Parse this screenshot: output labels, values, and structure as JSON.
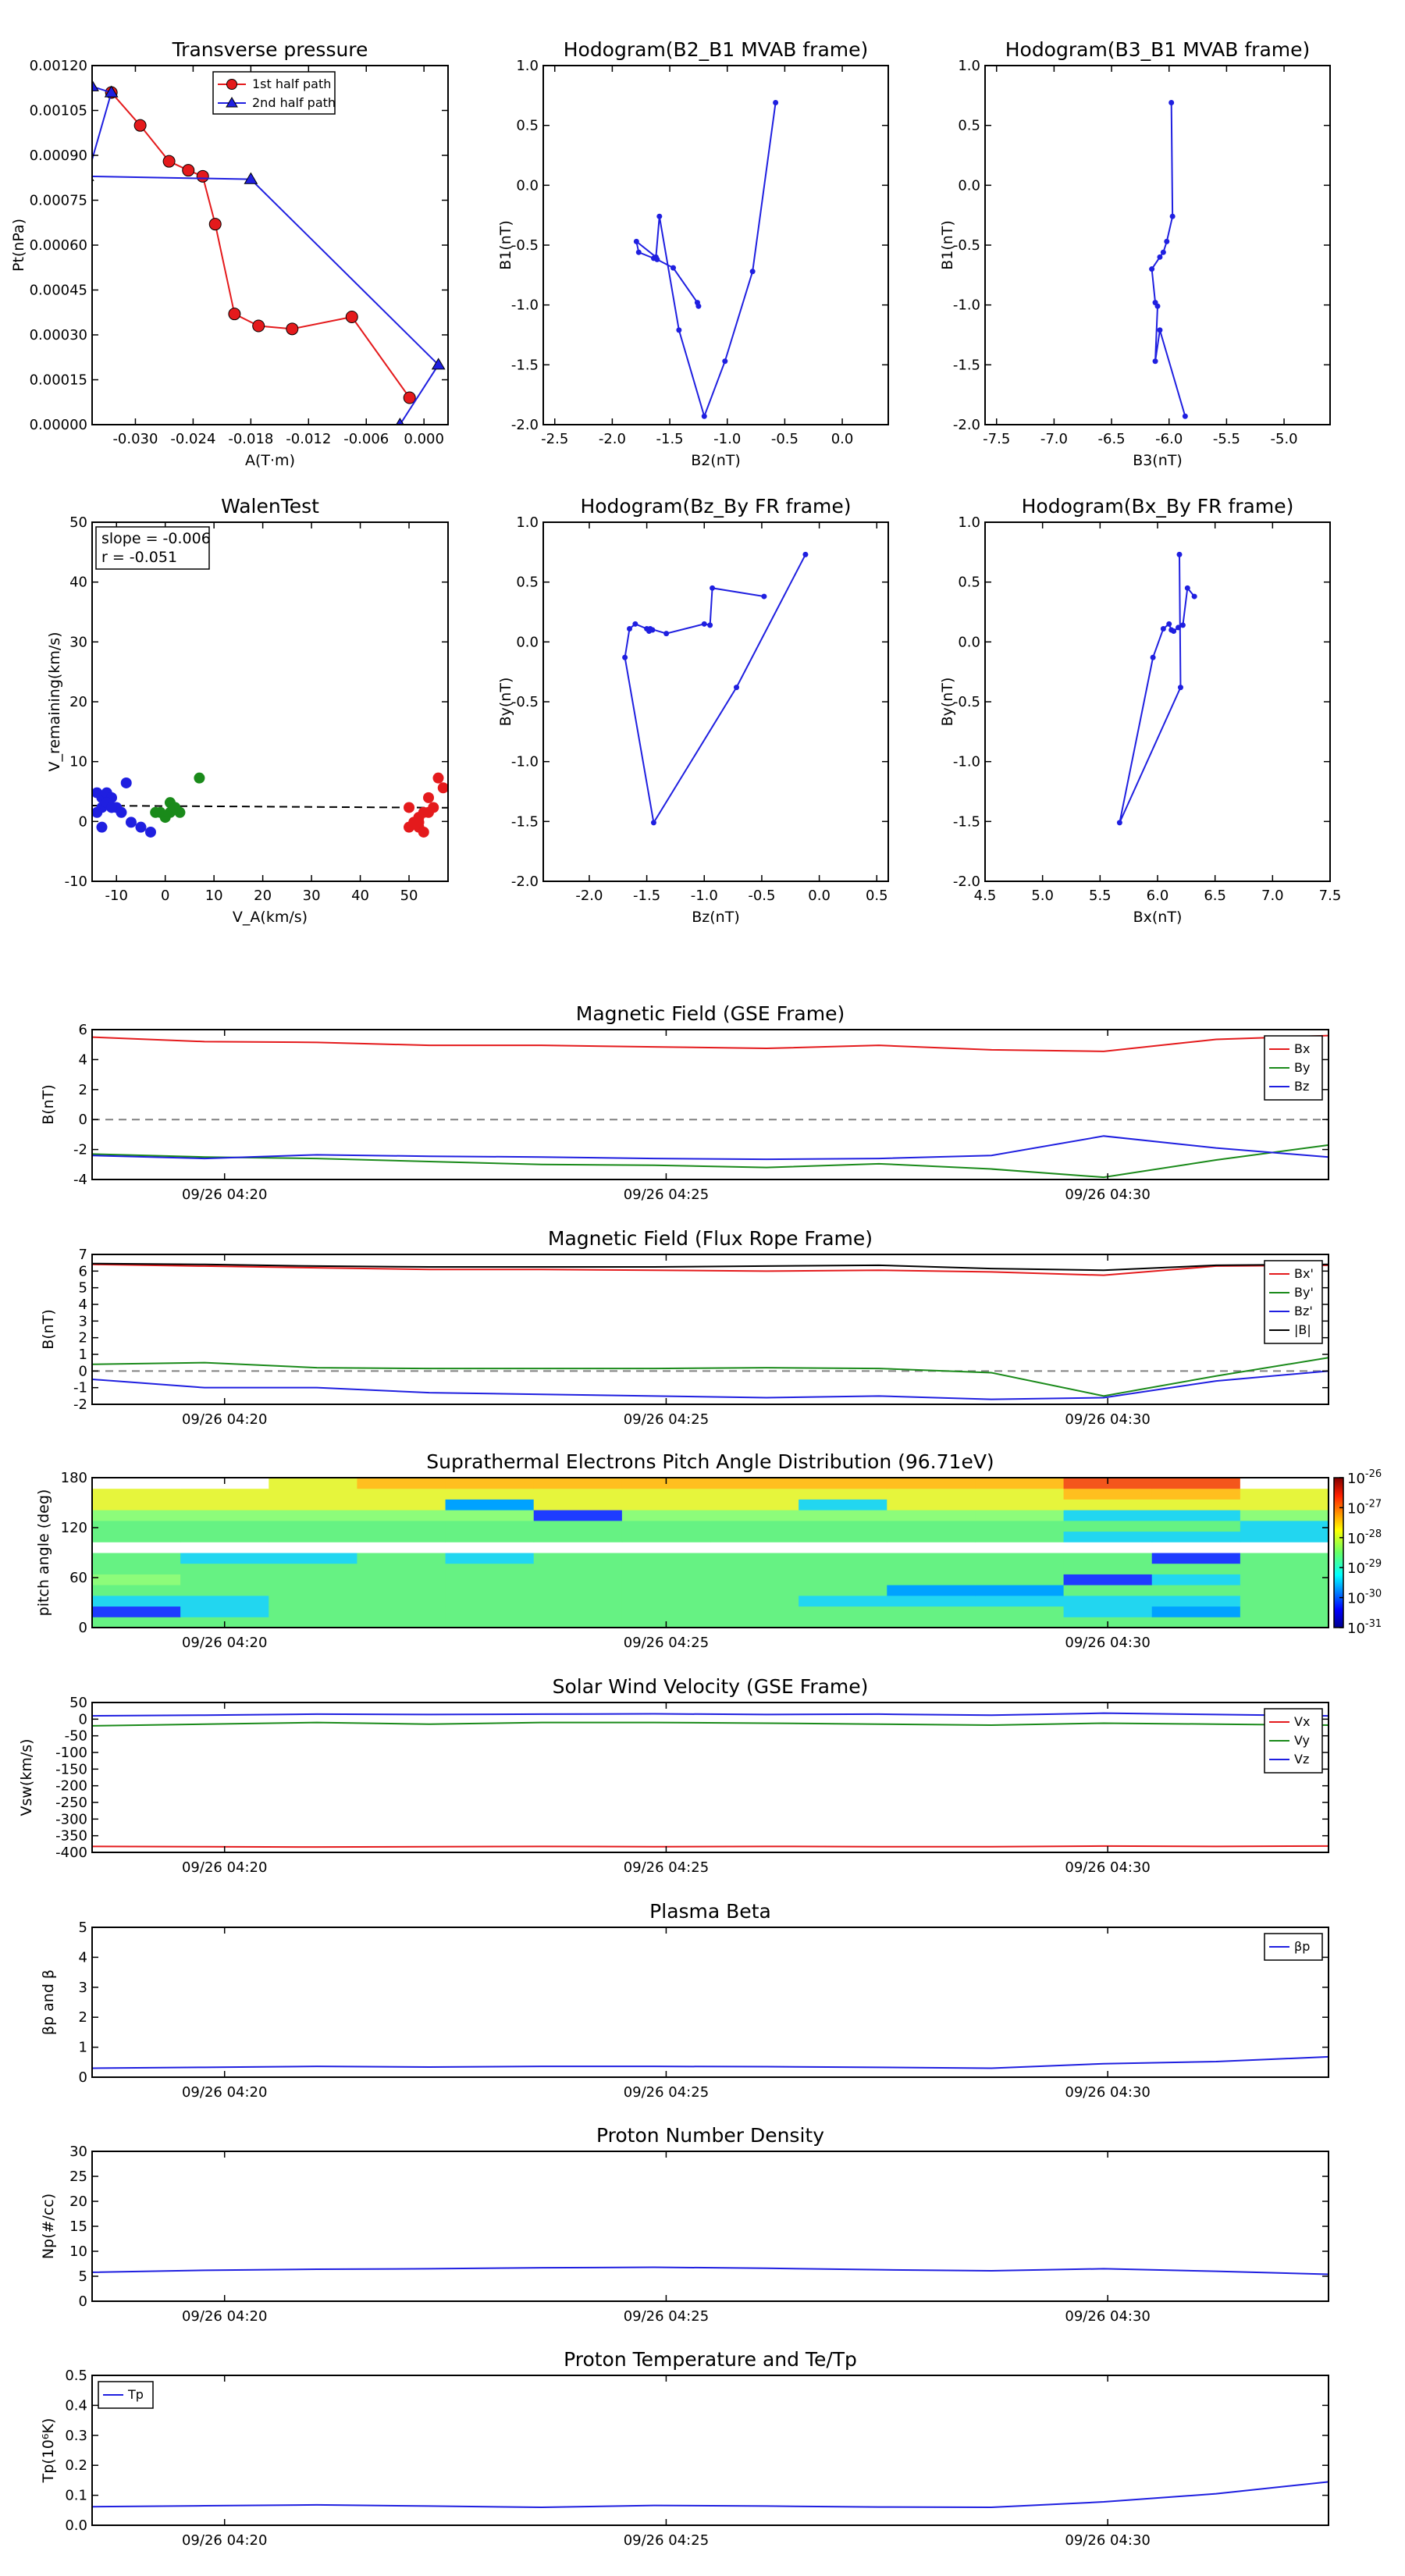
{
  "palette": {
    "red": "#e41a1c",
    "blue": "#1f1fe0",
    "green": "#1a8a1a",
    "black": "#000000",
    "pa_blue": "#1e3cff"
  },
  "chart_data": [
    {
      "id": "tp",
      "type": "scatter",
      "title": "Transverse pressure",
      "xlabel": "A(T·m)",
      "ylabel": "Pt(nPa)",
      "xlim": [
        -0.0345,
        0.0025
      ],
      "ylim": [
        0,
        0.0012
      ],
      "xticks": [
        "-0.030",
        "-0.024",
        "-0.018",
        "-0.012",
        "-0.006",
        "0.000"
      ],
      "yticks": [
        "0.00000",
        "0.00015",
        "0.00030",
        "0.00045",
        "0.00060",
        "0.00075",
        "0.00090",
        "0.00105",
        "0.00120"
      ],
      "legend": {
        "position": "top-center",
        "entries": [
          "1st half path",
          "2nd half path"
        ]
      },
      "series": [
        {
          "name": "1st half path",
          "color": "red",
          "marker": "circle",
          "x": [
            -0.0325,
            -0.0295,
            -0.0265,
            -0.0245,
            -0.023,
            -0.0217,
            -0.0197,
            -0.0172,
            -0.0137,
            -0.0075,
            -0.0015
          ],
          "y": [
            0.00111,
            0.001,
            0.00088,
            0.00085,
            0.00083,
            0.00067,
            0.00037,
            0.00033,
            0.00032,
            0.00036,
            9e-05
          ]
        },
        {
          "name": "2nd half path",
          "color": "blue",
          "marker": "triangle",
          "x": [
            -0.0345,
            -0.0325,
            -0.035,
            -0.018,
            0.0015,
            -0.0025
          ],
          "y": [
            0.00113,
            0.00111,
            0.00083,
            0.00082,
            0.0002,
            0.0
          ]
        }
      ]
    },
    {
      "id": "h1",
      "type": "line",
      "title": "Hodogram(B2_B1 MVAB frame)",
      "xlabel": "B2(nT)",
      "ylabel": "B1(nT)",
      "xlim": [
        -2.6,
        0.4
      ],
      "ylim": [
        -2.0,
        1.0
      ],
      "xticks": [
        "-2.5",
        "-2.0",
        "-1.5",
        "-1.0",
        "-0.5",
        "0.0"
      ],
      "yticks": [
        "-2.0",
        "-1.5",
        "-1.0",
        "-0.5",
        "0.0",
        "0.5",
        "1.0"
      ],
      "series": [
        {
          "color": "blue",
          "x": [
            -0.58,
            -0.78,
            -1.02,
            -1.2,
            -1.42,
            -1.59,
            -1.62,
            -1.79,
            -1.77,
            -1.64,
            -1.61,
            -1.47,
            -1.26,
            -1.25
          ],
          "y": [
            0.69,
            -0.72,
            -1.47,
            -1.93,
            -1.21,
            -0.26,
            -0.6,
            -0.47,
            -0.56,
            -0.61,
            -0.62,
            -0.69,
            -0.98,
            -1.01
          ]
        }
      ]
    },
    {
      "id": "h2",
      "type": "line",
      "title": "Hodogram(B3_B1 MVAB frame)",
      "xlabel": "B3(nT)",
      "ylabel": "B1(nT)",
      "xlim": [
        -7.6,
        -4.6
      ],
      "ylim": [
        -2.0,
        1.0
      ],
      "xticks": [
        "-7.5",
        "-7.0",
        "-6.5",
        "-6.0",
        "-5.5",
        "-5.0"
      ],
      "yticks": [
        "-2.0",
        "-1.5",
        "-1.0",
        "-0.5",
        "0.0",
        "0.5",
        "1.0"
      ],
      "series": [
        {
          "color": "blue",
          "x": [
            -5.98,
            -5.97,
            -6.02,
            -6.05,
            -6.08,
            -6.15,
            -6.12,
            -6.1,
            -6.12,
            -6.08,
            -5.86
          ],
          "y": [
            0.69,
            -0.26,
            -0.47,
            -0.56,
            -0.6,
            -0.7,
            -0.98,
            -1.01,
            -1.47,
            -1.21,
            -1.93
          ]
        }
      ]
    },
    {
      "id": "wt",
      "type": "scatter",
      "title": "WalenTest",
      "xlabel": "V_A(km/s)",
      "ylabel": "V_remaining(km/s)",
      "xlim": [
        -15,
        58
      ],
      "ylim": [
        -15,
        58
      ],
      "xticks": [
        "-10",
        "0",
        "10",
        "20",
        "30",
        "40",
        "50"
      ],
      "yticks": [
        "-10",
        "0",
        "10",
        "20",
        "30",
        "40",
        "50"
      ],
      "annotation": [
        "slope = -0.006",
        "r = -0.051"
      ],
      "series": [
        {
          "color": "blue",
          "x": [
            -14,
            -13,
            -12,
            -13,
            -11,
            -12,
            -10,
            -8,
            -9,
            -7,
            -5,
            -3,
            -13,
            -14,
            -11
          ],
          "y": [
            3,
            2,
            3,
            0,
            2,
            1,
            0,
            5,
            -1,
            -3,
            -4,
            -5,
            -4,
            -1,
            0
          ]
        },
        {
          "color": "green",
          "x": [
            7,
            1,
            2,
            3,
            0,
            -1,
            1,
            -2,
            2
          ],
          "y": [
            6,
            1,
            0,
            -1,
            -2,
            -1,
            -1,
            -1,
            0
          ]
        },
        {
          "color": "red",
          "x": [
            50,
            51,
            52,
            52,
            53,
            53,
            54,
            55,
            56,
            57,
            52,
            50,
            51,
            54
          ],
          "y": [
            0,
            -3,
            -4,
            -2,
            -5,
            -1,
            2,
            0,
            6,
            4,
            -3,
            -4,
            -3,
            -1
          ]
        }
      ],
      "fit_line": {
        "slope": -0.006,
        "intercept": 0.3
      }
    },
    {
      "id": "h3",
      "type": "line",
      "title": "Hodogram(Bz_By FR frame)",
      "xlabel": "Bz(nT)",
      "ylabel": "By(nT)",
      "xlim": [
        -2.4,
        0.6
      ],
      "ylim": [
        -2.0,
        1.0
      ],
      "xticks": [
        "-2.0",
        "-1.5",
        "-1.0",
        "-0.5",
        "0.0",
        "0.5"
      ],
      "yticks": [
        "-2.0",
        "-1.5",
        "-1.0",
        "-0.5",
        "0.0",
        "0.5",
        "1.0"
      ],
      "series": [
        {
          "color": "blue",
          "x": [
            -0.12,
            -0.72,
            -1.44,
            -1.69,
            -1.65,
            -1.6,
            -1.5,
            -1.48,
            -1.45,
            -1.47,
            -1.33,
            -1.0,
            -0.95,
            -0.93,
            -0.48
          ],
          "y": [
            0.73,
            -0.38,
            -1.51,
            -0.13,
            0.11,
            0.15,
            0.11,
            0.09,
            0.1,
            0.11,
            0.07,
            0.15,
            0.14,
            0.45,
            0.38
          ]
        }
      ]
    },
    {
      "id": "h4",
      "type": "line",
      "title": "Hodogram(Bx_By FR frame)",
      "xlabel": "Bx(nT)",
      "ylabel": "By(nT)",
      "xlim": [
        4.5,
        7.5
      ],
      "ylim": [
        -2.0,
        1.0
      ],
      "xticks": [
        "4.5",
        "5.0",
        "5.5",
        "6.0",
        "6.5",
        "7.0",
        "7.5"
      ],
      "yticks": [
        "-2.0",
        "-1.5",
        "-1.0",
        "-0.5",
        "0.0",
        "0.5",
        "1.0"
      ],
      "series": [
        {
          "color": "blue",
          "x": [
            6.19,
            6.2,
            5.67,
            5.96,
            6.05,
            6.1,
            6.12,
            6.14,
            6.18,
            6.22,
            6.26,
            6.32
          ],
          "y": [
            0.73,
            -0.38,
            -1.51,
            -0.13,
            0.11,
            0.15,
            0.1,
            0.09,
            0.12,
            0.14,
            0.45,
            0.38
          ]
        }
      ]
    },
    {
      "id": "ts1",
      "type": "line",
      "title": "Magnetic Field (GSE Frame)",
      "ylabel": "B(nT)",
      "ylim": [
        -4,
        6
      ],
      "yticks": [
        "-4",
        "-2",
        "0",
        "2",
        "4",
        "6"
      ],
      "zero_line": true,
      "legend": {
        "position": "right",
        "entries": [
          "Bx",
          "By",
          "Bz"
        ]
      },
      "series": [
        {
          "name": "Bx",
          "color": "red",
          "y": [
            5.5,
            5.2,
            5.15,
            4.95,
            4.95,
            4.85,
            4.75,
            4.95,
            4.65,
            4.55,
            5.35,
            5.6
          ]
        },
        {
          "name": "By",
          "color": "green",
          "y": [
            -2.3,
            -2.5,
            -2.6,
            -2.8,
            -3.0,
            -3.05,
            -3.2,
            -2.95,
            -3.3,
            -3.85,
            -2.7,
            -1.7
          ]
        },
        {
          "name": "Bz",
          "color": "blue",
          "y": [
            -2.4,
            -2.6,
            -2.35,
            -2.45,
            -2.5,
            -2.6,
            -2.65,
            -2.6,
            -2.4,
            -1.1,
            -1.9,
            -2.5
          ]
        }
      ]
    },
    {
      "id": "ts2",
      "type": "line",
      "title": "Magnetic Field (Flux Rope Frame)",
      "ylabel": "B(nT)",
      "ylim": [
        -2,
        7
      ],
      "yticks": [
        "-2",
        "-1",
        "0",
        "1",
        "2",
        "3",
        "4",
        "5",
        "6",
        "7"
      ],
      "zero_line": true,
      "legend": {
        "position": "right",
        "entries": [
          "Bx'",
          "By'",
          "Bz'",
          "|B|"
        ]
      },
      "series": [
        {
          "name": "Bx'",
          "color": "red",
          "y": [
            6.4,
            6.3,
            6.2,
            6.1,
            6.1,
            6.05,
            6.0,
            6.05,
            5.95,
            5.75,
            6.3,
            6.35
          ]
        },
        {
          "name": "By'",
          "color": "green",
          "y": [
            0.4,
            0.5,
            0.2,
            0.15,
            0.15,
            0.15,
            0.2,
            0.15,
            -0.1,
            -1.5,
            -0.3,
            0.8
          ]
        },
        {
          "name": "Bz'",
          "color": "blue",
          "y": [
            -0.5,
            -1.0,
            -1.0,
            -1.3,
            -1.4,
            -1.5,
            -1.6,
            -1.5,
            -1.7,
            -1.6,
            -0.6,
            0.0
          ]
        },
        {
          "name": "|B|",
          "color": "black",
          "y": [
            6.45,
            6.4,
            6.3,
            6.25,
            6.25,
            6.25,
            6.3,
            6.35,
            6.15,
            6.05,
            6.35,
            6.4
          ]
        }
      ]
    },
    {
      "id": "pad",
      "type": "heatmap",
      "title": "Suprathermal Electrons Pitch Angle Distribution (96.71eV)",
      "ylabel": "pitch angle (deg)",
      "ylim": [
        0,
        180
      ],
      "yticks": [
        "0",
        "60",
        "120",
        "180"
      ],
      "colorbar": {
        "labels": [
          "10",
          "10",
          "10",
          "10",
          "10",
          "10"
        ],
        "exponents": [
          "-26",
          "-27",
          "-28",
          "-29",
          "-30",
          "-31"
        ]
      },
      "cells": [
        [
          "g",
          "g",
          "g",
          "g",
          "g",
          "g",
          "g",
          "g",
          "g",
          "g",
          "g",
          "g",
          "g",
          "g"
        ],
        [
          "b",
          "c",
          "g",
          "g",
          "g",
          "g",
          "g",
          "g",
          "g",
          "g",
          "g",
          "c",
          "n",
          "g"
        ],
        [
          "c",
          "c",
          "g",
          "g",
          "g",
          "g",
          "g",
          "g",
          "c",
          "c",
          "c",
          "c",
          "c",
          "g"
        ],
        [
          "g",
          "g",
          "g",
          "g",
          "g",
          "g",
          "g",
          "g",
          "g",
          "n",
          "n",
          "g",
          "g",
          "g"
        ],
        [
          "l",
          "g",
          "g",
          "g",
          "g",
          "g",
          "g",
          "g",
          "g",
          "g",
          "g",
          "b",
          "c",
          "g"
        ],
        [
          "g",
          "g",
          "g",
          "g",
          "g",
          "g",
          "g",
          "g",
          "g",
          "g",
          "g",
          "g",
          "g",
          "g"
        ],
        [
          "g",
          "c",
          "c",
          "g",
          "c",
          "g",
          "g",
          "g",
          "g",
          "g",
          "g",
          "g",
          "b",
          "g"
        ],
        [
          "w",
          "w",
          "w",
          "w",
          "w",
          "w",
          "w",
          "w",
          "w",
          "w",
          "w",
          "w",
          "w",
          "w"
        ],
        [
          "g",
          "g",
          "g",
          "g",
          "g",
          "g",
          "g",
          "g",
          "g",
          "g",
          "g",
          "c",
          "c",
          "c"
        ],
        [
          "g",
          "g",
          "g",
          "g",
          "g",
          "g",
          "g",
          "g",
          "g",
          "g",
          "g",
          "g",
          "g",
          "c"
        ],
        [
          "l",
          "l",
          "l",
          "l",
          "l",
          "b",
          "l",
          "l",
          "l",
          "l",
          "l",
          "c",
          "c",
          "l"
        ],
        [
          "y",
          "y",
          "y",
          "y",
          "n",
          "y",
          "y",
          "y",
          "c",
          "y",
          "y",
          "y",
          "y",
          "y"
        ],
        [
          "y",
          "y",
          "y",
          "y",
          "y",
          "y",
          "y",
          "y",
          "y",
          "y",
          "y",
          "o",
          "o",
          "y"
        ],
        [
          "w",
          "w",
          "y",
          "o",
          "o",
          "o",
          "o",
          "o",
          "o",
          "o",
          "o",
          "r",
          "r",
          "w"
        ]
      ]
    },
    {
      "id": "ts3",
      "type": "line",
      "title": "Solar Wind Velocity (GSE Frame)",
      "ylabel": "Vsw(km/s)",
      "ylim": [
        -400,
        50
      ],
      "yticks": [
        "-400",
        "-350",
        "-300",
        "-250",
        "-200",
        "-150",
        "-100",
        "-50",
        "0",
        "50"
      ],
      "legend": {
        "position": "right",
        "entries": [
          "Vx",
          "Vy",
          "Vz"
        ]
      },
      "series": [
        {
          "name": "Vx",
          "color": "red",
          "y": [
            -382,
            -383,
            -384,
            -383,
            -382,
            -383,
            -382,
            -383,
            -383,
            -381,
            -382,
            -381
          ]
        },
        {
          "name": "Vy",
          "color": "green",
          "y": [
            -20,
            -15,
            -10,
            -15,
            -10,
            -10,
            -12,
            -15,
            -18,
            -12,
            -15,
            -18
          ]
        },
        {
          "name": "Vz",
          "color": "blue",
          "y": [
            10,
            12,
            15,
            14,
            15,
            16,
            14,
            15,
            12,
            18,
            14,
            10
          ]
        }
      ]
    },
    {
      "id": "ts4",
      "type": "line",
      "title": "Plasma Beta",
      "ylabel": "βp and β",
      "ylim": [
        0,
        5
      ],
      "yticks": [
        "0",
        "1",
        "2",
        "3",
        "4",
        "5"
      ],
      "legend": {
        "position": "top-right",
        "entries": [
          "βp"
        ]
      },
      "series": [
        {
          "name": "βp",
          "color": "blue",
          "y": [
            0.3,
            0.33,
            0.36,
            0.34,
            0.36,
            0.36,
            0.35,
            0.33,
            0.3,
            0.45,
            0.52,
            0.68
          ]
        }
      ]
    },
    {
      "id": "ts5",
      "type": "line",
      "title": "Proton Number Density",
      "ylabel": "Np(#/cc)",
      "ylim": [
        0,
        30
      ],
      "yticks": [
        "0",
        "5",
        "10",
        "15",
        "20",
        "25",
        "30"
      ],
      "series": [
        {
          "color": "blue",
          "y": [
            5.8,
            6.2,
            6.4,
            6.5,
            6.7,
            6.8,
            6.6,
            6.3,
            6.1,
            6.5,
            6.0,
            5.4
          ]
        }
      ]
    },
    {
      "id": "ts6",
      "type": "line",
      "title": "Proton Temperature and Te/Tp",
      "ylabel": "Tp(10⁶K)",
      "ylim": [
        0,
        0.5
      ],
      "yticks": [
        "0.0",
        "0.1",
        "0.2",
        "0.3",
        "0.4",
        "0.5"
      ],
      "legend": {
        "position": "top-left",
        "entries": [
          "Tp"
        ]
      },
      "series": [
        {
          "name": "Tp",
          "color": "blue",
          "y": [
            0.062,
            0.065,
            0.068,
            0.064,
            0.06,
            0.066,
            0.064,
            0.061,
            0.06,
            0.078,
            0.105,
            0.145
          ]
        }
      ]
    }
  ],
  "time_axis": {
    "labels": [
      "09/26 04:20",
      "09/26 04:25",
      "09/26 04:30"
    ],
    "range": [
      "04:18:30",
      "04:32:30"
    ]
  }
}
